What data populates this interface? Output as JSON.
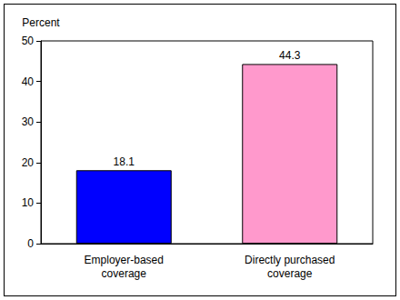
{
  "chart_data": {
    "type": "bar",
    "ylabel": "Percent",
    "categories": [
      "Employer-based coverage",
      "Directly purchased coverage"
    ],
    "values": [
      18.1,
      44.3
    ],
    "colors": [
      "#0000ff",
      "#ff99cc"
    ],
    "ylim": [
      0,
      50
    ],
    "yticks": [
      0,
      10,
      20,
      30,
      40,
      50
    ],
    "grid": false,
    "data_labels": true
  }
}
